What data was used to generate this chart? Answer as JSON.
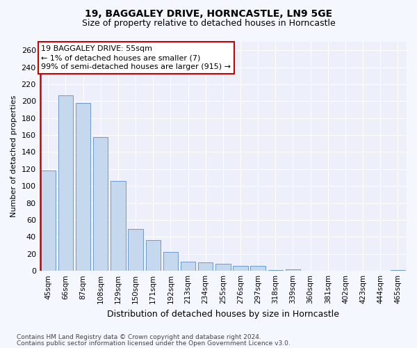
{
  "title1": "19, BAGGALEY DRIVE, HORNCASTLE, LN9 5GE",
  "title2": "Size of property relative to detached houses in Horncastle",
  "xlabel": "Distribution of detached houses by size in Horncastle",
  "ylabel": "Number of detached properties",
  "categories": [
    "45sqm",
    "66sqm",
    "87sqm",
    "108sqm",
    "129sqm",
    "150sqm",
    "171sqm",
    "192sqm",
    "213sqm",
    "234sqm",
    "255sqm",
    "276sqm",
    "297sqm",
    "318sqm",
    "339sqm",
    "360sqm",
    "381sqm",
    "402sqm",
    "423sqm",
    "444sqm",
    "465sqm"
  ],
  "values": [
    118,
    207,
    198,
    158,
    106,
    49,
    36,
    22,
    11,
    10,
    8,
    6,
    6,
    1,
    2,
    0,
    0,
    0,
    0,
    0,
    1
  ],
  "bar_color": "#c5d8ee",
  "bar_edge_color": "#5b8dc8",
  "annotation_box_color": "#ffffff",
  "annotation_box_edge": "#cc0000",
  "annotation_text_line1": "19 BAGGALEY DRIVE: 55sqm",
  "annotation_text_line2": "← 1% of detached houses are smaller (7)",
  "annotation_text_line3": "99% of semi-detached houses are larger (915) →",
  "footer1": "Contains HM Land Registry data © Crown copyright and database right 2024.",
  "footer2": "Contains public sector information licensed under the Open Government Licence v3.0.",
  "red_line_x": -0.45,
  "ylim": [
    0,
    270
  ],
  "yticks": [
    0,
    20,
    40,
    60,
    80,
    100,
    120,
    140,
    160,
    180,
    200,
    220,
    240,
    260
  ],
  "background_color": "#f5f7ff",
  "plot_bg_color": "#edf0fa",
  "title1_fontsize": 10,
  "title2_fontsize": 9,
  "ylabel_fontsize": 8,
  "xlabel_fontsize": 9,
  "tick_fontsize": 7.5,
  "ytick_fontsize": 8,
  "footer_fontsize": 6.5,
  "annot_fontsize": 8
}
